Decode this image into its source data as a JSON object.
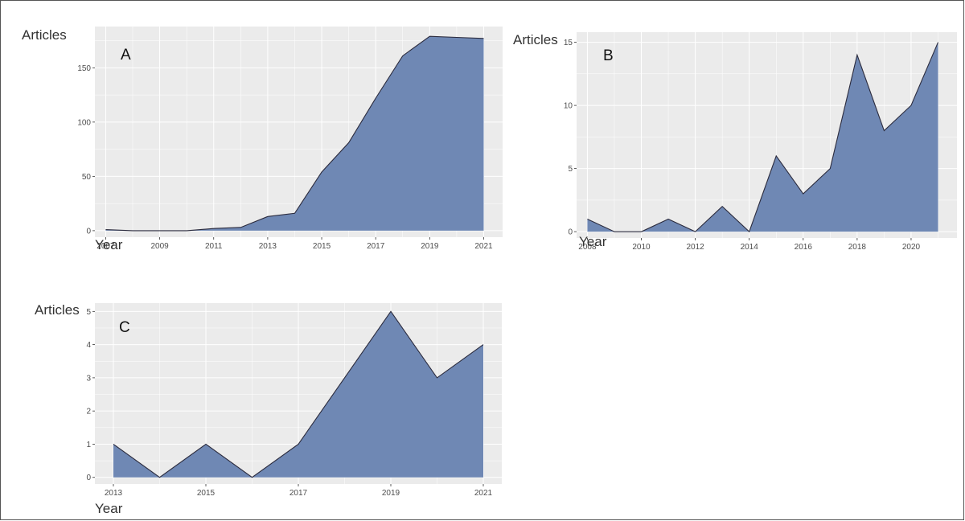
{
  "colors": {
    "panel_bg": "#ebebeb",
    "grid": "#ffffff",
    "area_fill": "#6f88b4",
    "area_stroke": "#2b2b3d"
  },
  "chart_data": [
    {
      "type": "area",
      "panel": "A",
      "xlabel": "Year",
      "ylabel": "Articles",
      "x": [
        2007,
        2008,
        2009,
        2010,
        2011,
        2012,
        2013,
        2014,
        2015,
        2016,
        2017,
        2018,
        2019,
        2020,
        2021
      ],
      "values": [
        1,
        0,
        0,
        0,
        2,
        3,
        13,
        16,
        54,
        81,
        122,
        161,
        179,
        178,
        177
      ],
      "xlim": [
        2006.6,
        2021.7
      ],
      "ylim": [
        -6,
        188
      ],
      "xticks": [
        2007,
        2009,
        2011,
        2013,
        2015,
        2017,
        2019,
        2021
      ],
      "yticks": [
        0,
        50,
        100,
        150
      ],
      "grid": true
    },
    {
      "type": "area",
      "panel": "B",
      "xlabel": "Year",
      "ylabel": "Articles",
      "x": [
        2008,
        2009,
        2010,
        2011,
        2012,
        2013,
        2014,
        2015,
        2016,
        2017,
        2018,
        2019,
        2020,
        2021
      ],
      "values": [
        1,
        0,
        0,
        1,
        0,
        2,
        0,
        6,
        3,
        5,
        14,
        8,
        10,
        15
      ],
      "xlim": [
        2007.6,
        2021.7
      ],
      "ylim": [
        -0.5,
        15.8
      ],
      "xticks": [
        2008,
        2010,
        2012,
        2014,
        2016,
        2018,
        2020
      ],
      "yticks": [
        0,
        5,
        10,
        15
      ],
      "grid": true
    },
    {
      "type": "area",
      "panel": "C",
      "xlabel": "Year",
      "ylabel": "Articles",
      "x": [
        2013,
        2014,
        2015,
        2016,
        2017,
        2018,
        2019,
        2020,
        2021
      ],
      "values": [
        1,
        0,
        1,
        0,
        1,
        3,
        5,
        3,
        4
      ],
      "xlim": [
        2012.6,
        2021.4
      ],
      "ylim": [
        -0.2,
        5.25
      ],
      "xticks": [
        2013,
        2015,
        2017,
        2019,
        2021
      ],
      "yticks": [
        0,
        1,
        2,
        3,
        4,
        5
      ],
      "grid": true
    }
  ]
}
